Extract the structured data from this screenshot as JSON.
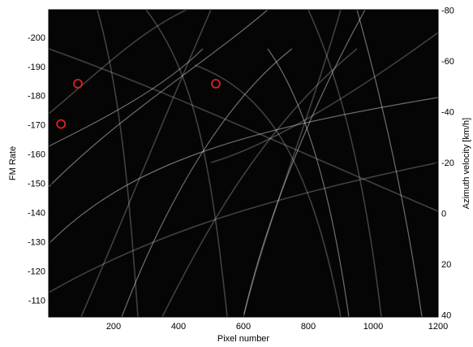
{
  "chart_data": {
    "type": "scatter",
    "xlabel": "Pixel number",
    "ylabel": "FM Rate",
    "y2label": "Azimuth velocity  [km/h]",
    "x": [
      90,
      515,
      38
    ],
    "values": [
      -184.4,
      -184.4,
      -170.6
    ],
    "color": "#e02020",
    "plot_background": "#050505",
    "xlim": [
      0,
      1200
    ],
    "xticks": [
      200,
      400,
      600,
      800,
      1000,
      1200
    ],
    "ylim": [
      -104.6,
      -209.7
    ],
    "yticks": [
      -110,
      -120,
      -130,
      -140,
      -150,
      -160,
      -170,
      -180,
      -190,
      -200
    ],
    "y2lim": [
      40.5,
      -80.5
    ],
    "y2ticks": [
      40,
      20,
      0,
      -20,
      -40,
      -60,
      -80
    ],
    "grid": false
  }
}
